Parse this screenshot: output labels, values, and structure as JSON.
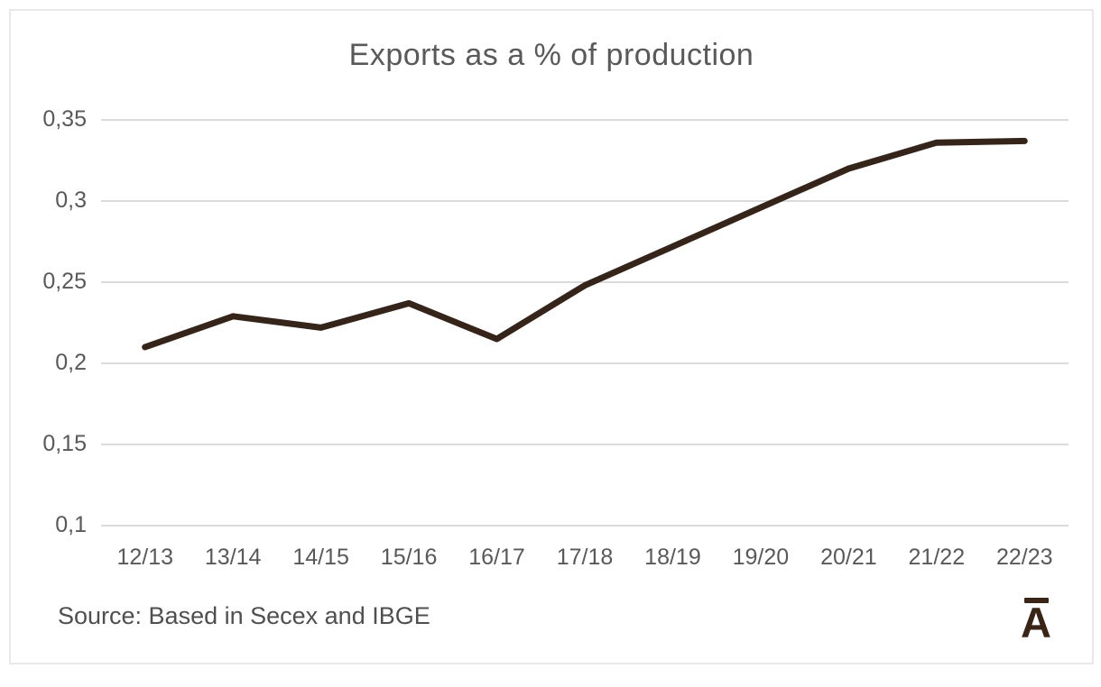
{
  "chart_data": {
    "type": "line",
    "title": "Exports as a % of production",
    "categories": [
      "12/13",
      "13/14",
      "14/15",
      "15/16",
      "16/17",
      "17/18",
      "18/19",
      "19/20",
      "20/21",
      "21/22",
      "22/23"
    ],
    "series": [
      {
        "name": "Exports as a % of production",
        "values": [
          0.21,
          0.229,
          0.222,
          0.237,
          0.215,
          0.248,
          0.272,
          0.296,
          0.32,
          0.336,
          0.337
        ]
      }
    ],
    "xlabel": "",
    "ylabel": "",
    "ylim": [
      0.1,
      0.35
    ],
    "y_ticks": [
      {
        "value": 0.35,
        "label": "0,35"
      },
      {
        "value": 0.3,
        "label": "0,3"
      },
      {
        "value": 0.25,
        "label": "0,25"
      },
      {
        "value": 0.2,
        "label": "0,2"
      },
      {
        "value": 0.15,
        "label": "0,15"
      },
      {
        "value": 0.1,
        "label": "0,1"
      }
    ],
    "decimal_separator": ",",
    "grid": true,
    "legend_position": "none",
    "line_color": "#35241a",
    "gridline_color": "#dadada",
    "text_color": "#595959",
    "background_color": "#ffffff",
    "frame_border_color": "#e9e9e9"
  },
  "source_note": "Source: Based in Secex and IBGE",
  "logo": {
    "letter": "A",
    "description": "letter A with macron bar above",
    "color": "#3a2415"
  }
}
